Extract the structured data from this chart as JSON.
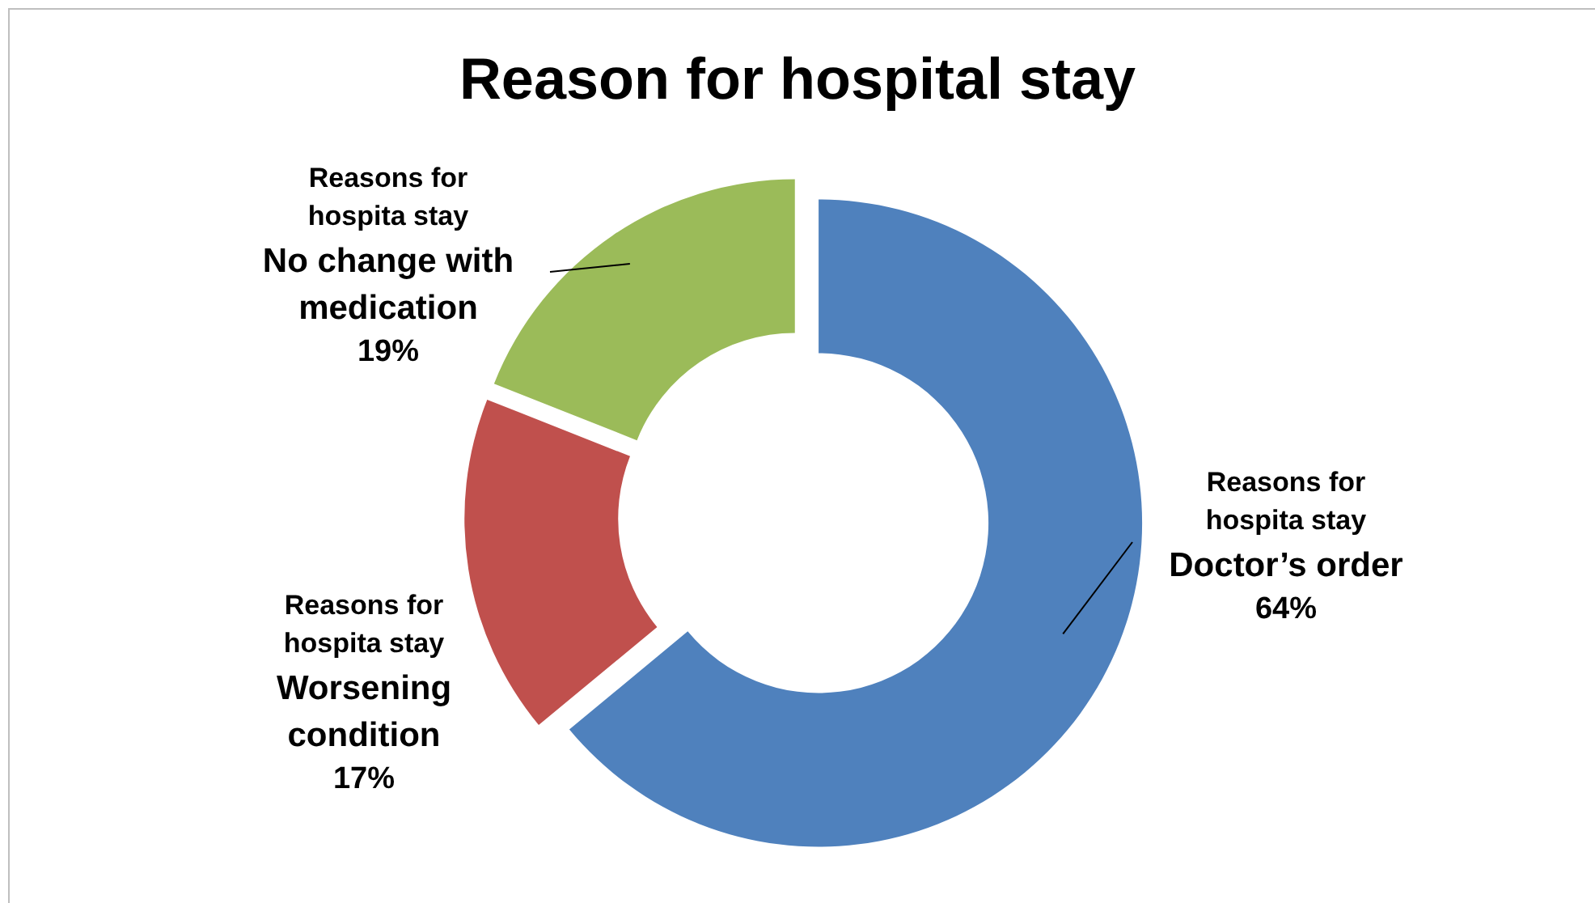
{
  "chart_data": {
    "type": "donut",
    "title": "Reason for hospital stay",
    "categories": [
      "Doctor’s order",
      "Worsening condition",
      "No change with medication"
    ],
    "series": [
      {
        "name": "Reasons for hospita stay",
        "values": [
          64,
          17,
          19
        ],
        "value_labels": [
          "64%",
          "17%",
          "19%"
        ]
      }
    ],
    "colors": [
      "#4f81bd",
      "#c0504d",
      "#9bbb59"
    ]
  }
}
